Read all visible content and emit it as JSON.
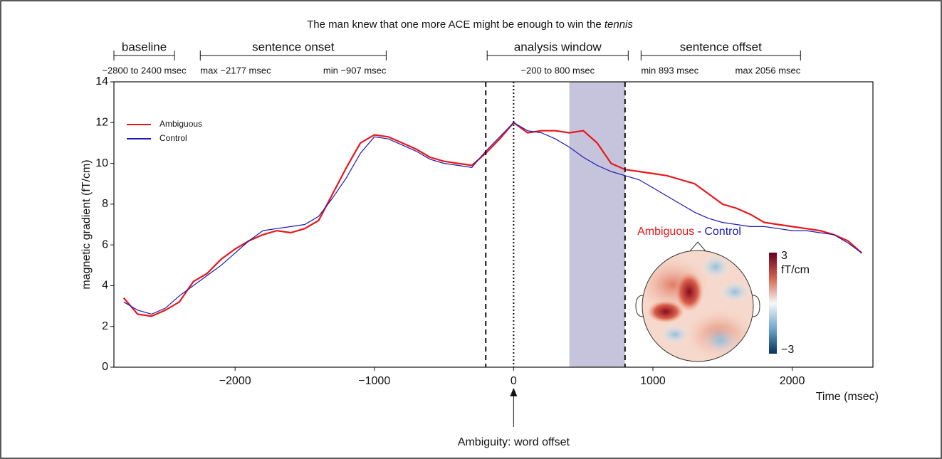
{
  "chart_data": {
    "type": "line",
    "title": "The man knew that one more ACE might be enough to win the ",
    "title_italic": "tennis",
    "y_label": "magnetic gradient (fT/cm)",
    "x_label": "Time (msec)",
    "xlim": [
      -2870,
      2580
    ],
    "ylim": [
      0,
      14
    ],
    "xticks": [
      {
        "value": -2000,
        "label": "−2000"
      },
      {
        "value": -1000,
        "label": "−1000"
      },
      0,
      1000,
      2000
    ],
    "yticks": [
      0,
      2,
      4,
      6,
      8,
      10,
      12,
      14
    ],
    "legend": "upper left",
    "x": [
      -2800,
      -2700,
      -2600,
      -2500,
      -2400,
      -2300,
      -2200,
      -2100,
      -2000,
      -1900,
      -1800,
      -1700,
      -1600,
      -1500,
      -1400,
      -1300,
      -1200,
      -1100,
      -1000,
      -900,
      -800,
      -700,
      -600,
      -500,
      -400,
      -300,
      -200,
      -100,
      0,
      100,
      200,
      300,
      400,
      500,
      600,
      700,
      800,
      900,
      1000,
      1100,
      1200,
      1300,
      1400,
      1500,
      1600,
      1700,
      1800,
      1900,
      2000,
      2100,
      2200,
      2300,
      2400,
      2500
    ],
    "series": [
      {
        "name": "Ambiguous",
        "color": "#e8161b",
        "values": [
          3.4,
          2.6,
          2.5,
          2.8,
          3.2,
          4.2,
          4.6,
          5.3,
          5.8,
          6.2,
          6.5,
          6.7,
          6.6,
          6.8,
          7.2,
          8.5,
          9.8,
          11.0,
          11.4,
          11.3,
          11.0,
          10.7,
          10.3,
          10.1,
          10.0,
          9.9,
          10.5,
          11.2,
          12.0,
          11.5,
          11.6,
          11.6,
          11.5,
          11.6,
          11.0,
          10.0,
          9.7,
          9.6,
          9.5,
          9.4,
          9.2,
          9.0,
          8.5,
          8.0,
          7.8,
          7.5,
          7.1,
          7.0,
          6.9,
          6.8,
          6.7,
          6.5,
          6.2,
          5.6
        ]
      },
      {
        "name": "Control",
        "color": "#1c1ab0",
        "values": [
          3.2,
          2.8,
          2.6,
          2.9,
          3.5,
          4.0,
          4.5,
          5.0,
          5.6,
          6.2,
          6.7,
          6.8,
          6.9,
          7.0,
          7.4,
          8.3,
          9.3,
          10.5,
          11.3,
          11.2,
          10.9,
          10.6,
          10.2,
          10.0,
          9.9,
          9.8,
          10.6,
          11.3,
          12.0,
          11.6,
          11.5,
          11.2,
          10.8,
          10.3,
          9.9,
          9.6,
          9.4,
          9.2,
          8.8,
          8.4,
          8.0,
          7.6,
          7.3,
          7.1,
          7.0,
          6.9,
          6.9,
          6.8,
          6.7,
          6.7,
          6.6,
          6.5,
          6.1,
          5.6
        ]
      }
    ],
    "vlines": [
      {
        "x": -200,
        "style": "dashed"
      },
      {
        "x": 0,
        "style": "dotted"
      },
      {
        "x": 800,
        "style": "dashed"
      }
    ],
    "shaded_region": {
      "x": [
        400,
        800
      ],
      "color": "#c6c4dc"
    },
    "periods": [
      {
        "label": "baseline",
        "range": [
          -2870,
          -2435
        ],
        "sublabels": [
          "−2800 to 2400 msec"
        ]
      },
      {
        "label": "sentence onset",
        "range": [
          -2250,
          -915
        ],
        "sublabels": [
          "max −2177 msec",
          "min −907 msec"
        ]
      },
      {
        "label": "analysis window",
        "range": [
          -190,
          823
        ],
        "sublabels": [
          "−200 to 800 msec"
        ]
      },
      {
        "label": "sentence offset",
        "range": [
          915,
          2060
        ],
        "sublabels": [
          "min 893 msec",
          "max 2056 msec"
        ]
      }
    ],
    "arrow_annotation": {
      "x": 0,
      "text": "Ambiguity: word offset"
    },
    "inset": {
      "title_a": "Ambiguous",
      "separator": " - ",
      "title_b": "Control",
      "clim": [
        -3,
        3
      ],
      "cticks": [
        {
          "value": 3,
          "label": "3"
        },
        {
          "value": -3,
          "label": "−3"
        }
      ],
      "unit": "fT/cm"
    }
  }
}
